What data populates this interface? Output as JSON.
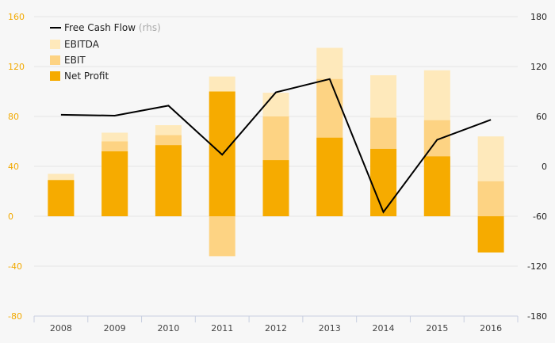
{
  "chart_data": {
    "type": "bar",
    "categories": [
      "2008",
      "2009",
      "2010",
      "2011",
      "2012",
      "2013",
      "2014",
      "2015",
      "2016"
    ],
    "series": [
      {
        "name": "EBITDA",
        "type": "bar",
        "values": [
          34,
          67,
          73,
          112,
          99,
          135,
          113,
          117,
          64
        ]
      },
      {
        "name": "EBIT",
        "type": "bar",
        "values": [
          29,
          60,
          65,
          -32,
          80,
          110,
          79,
          77,
          28
        ]
      },
      {
        "name": "Net Profit",
        "type": "bar",
        "values": [
          29,
          52,
          57,
          100,
          45,
          63,
          54,
          48,
          -29
        ]
      },
      {
        "name": "Free Cash Flow",
        "note": "(rhs)",
        "type": "line",
        "axis": "right",
        "values": [
          62,
          61,
          73,
          14,
          89,
          105,
          -55,
          32,
          56
        ]
      }
    ],
    "y_left": {
      "ticks": [
        "160",
        "120",
        "80",
        "40",
        "0",
        "-40",
        "-80"
      ],
      "lim": [
        -80,
        160
      ]
    },
    "y_right": {
      "ticks": [
        "180",
        "120",
        "60",
        "0",
        "-60",
        "-120",
        "-180"
      ],
      "lim": [
        -180,
        180
      ]
    },
    "grid": true,
    "legend_position": "top-left",
    "colors": {
      "EBITDA": "#fee9bb",
      "EBIT": "#fdd383",
      "Net Profit": "#f6ab00",
      "Free Cash Flow": "#000000",
      "left_axis_text": "#f2a900",
      "right_axis_text": "#222222",
      "grid": "#e4e4e4",
      "background": "#f7f7f7"
    }
  }
}
